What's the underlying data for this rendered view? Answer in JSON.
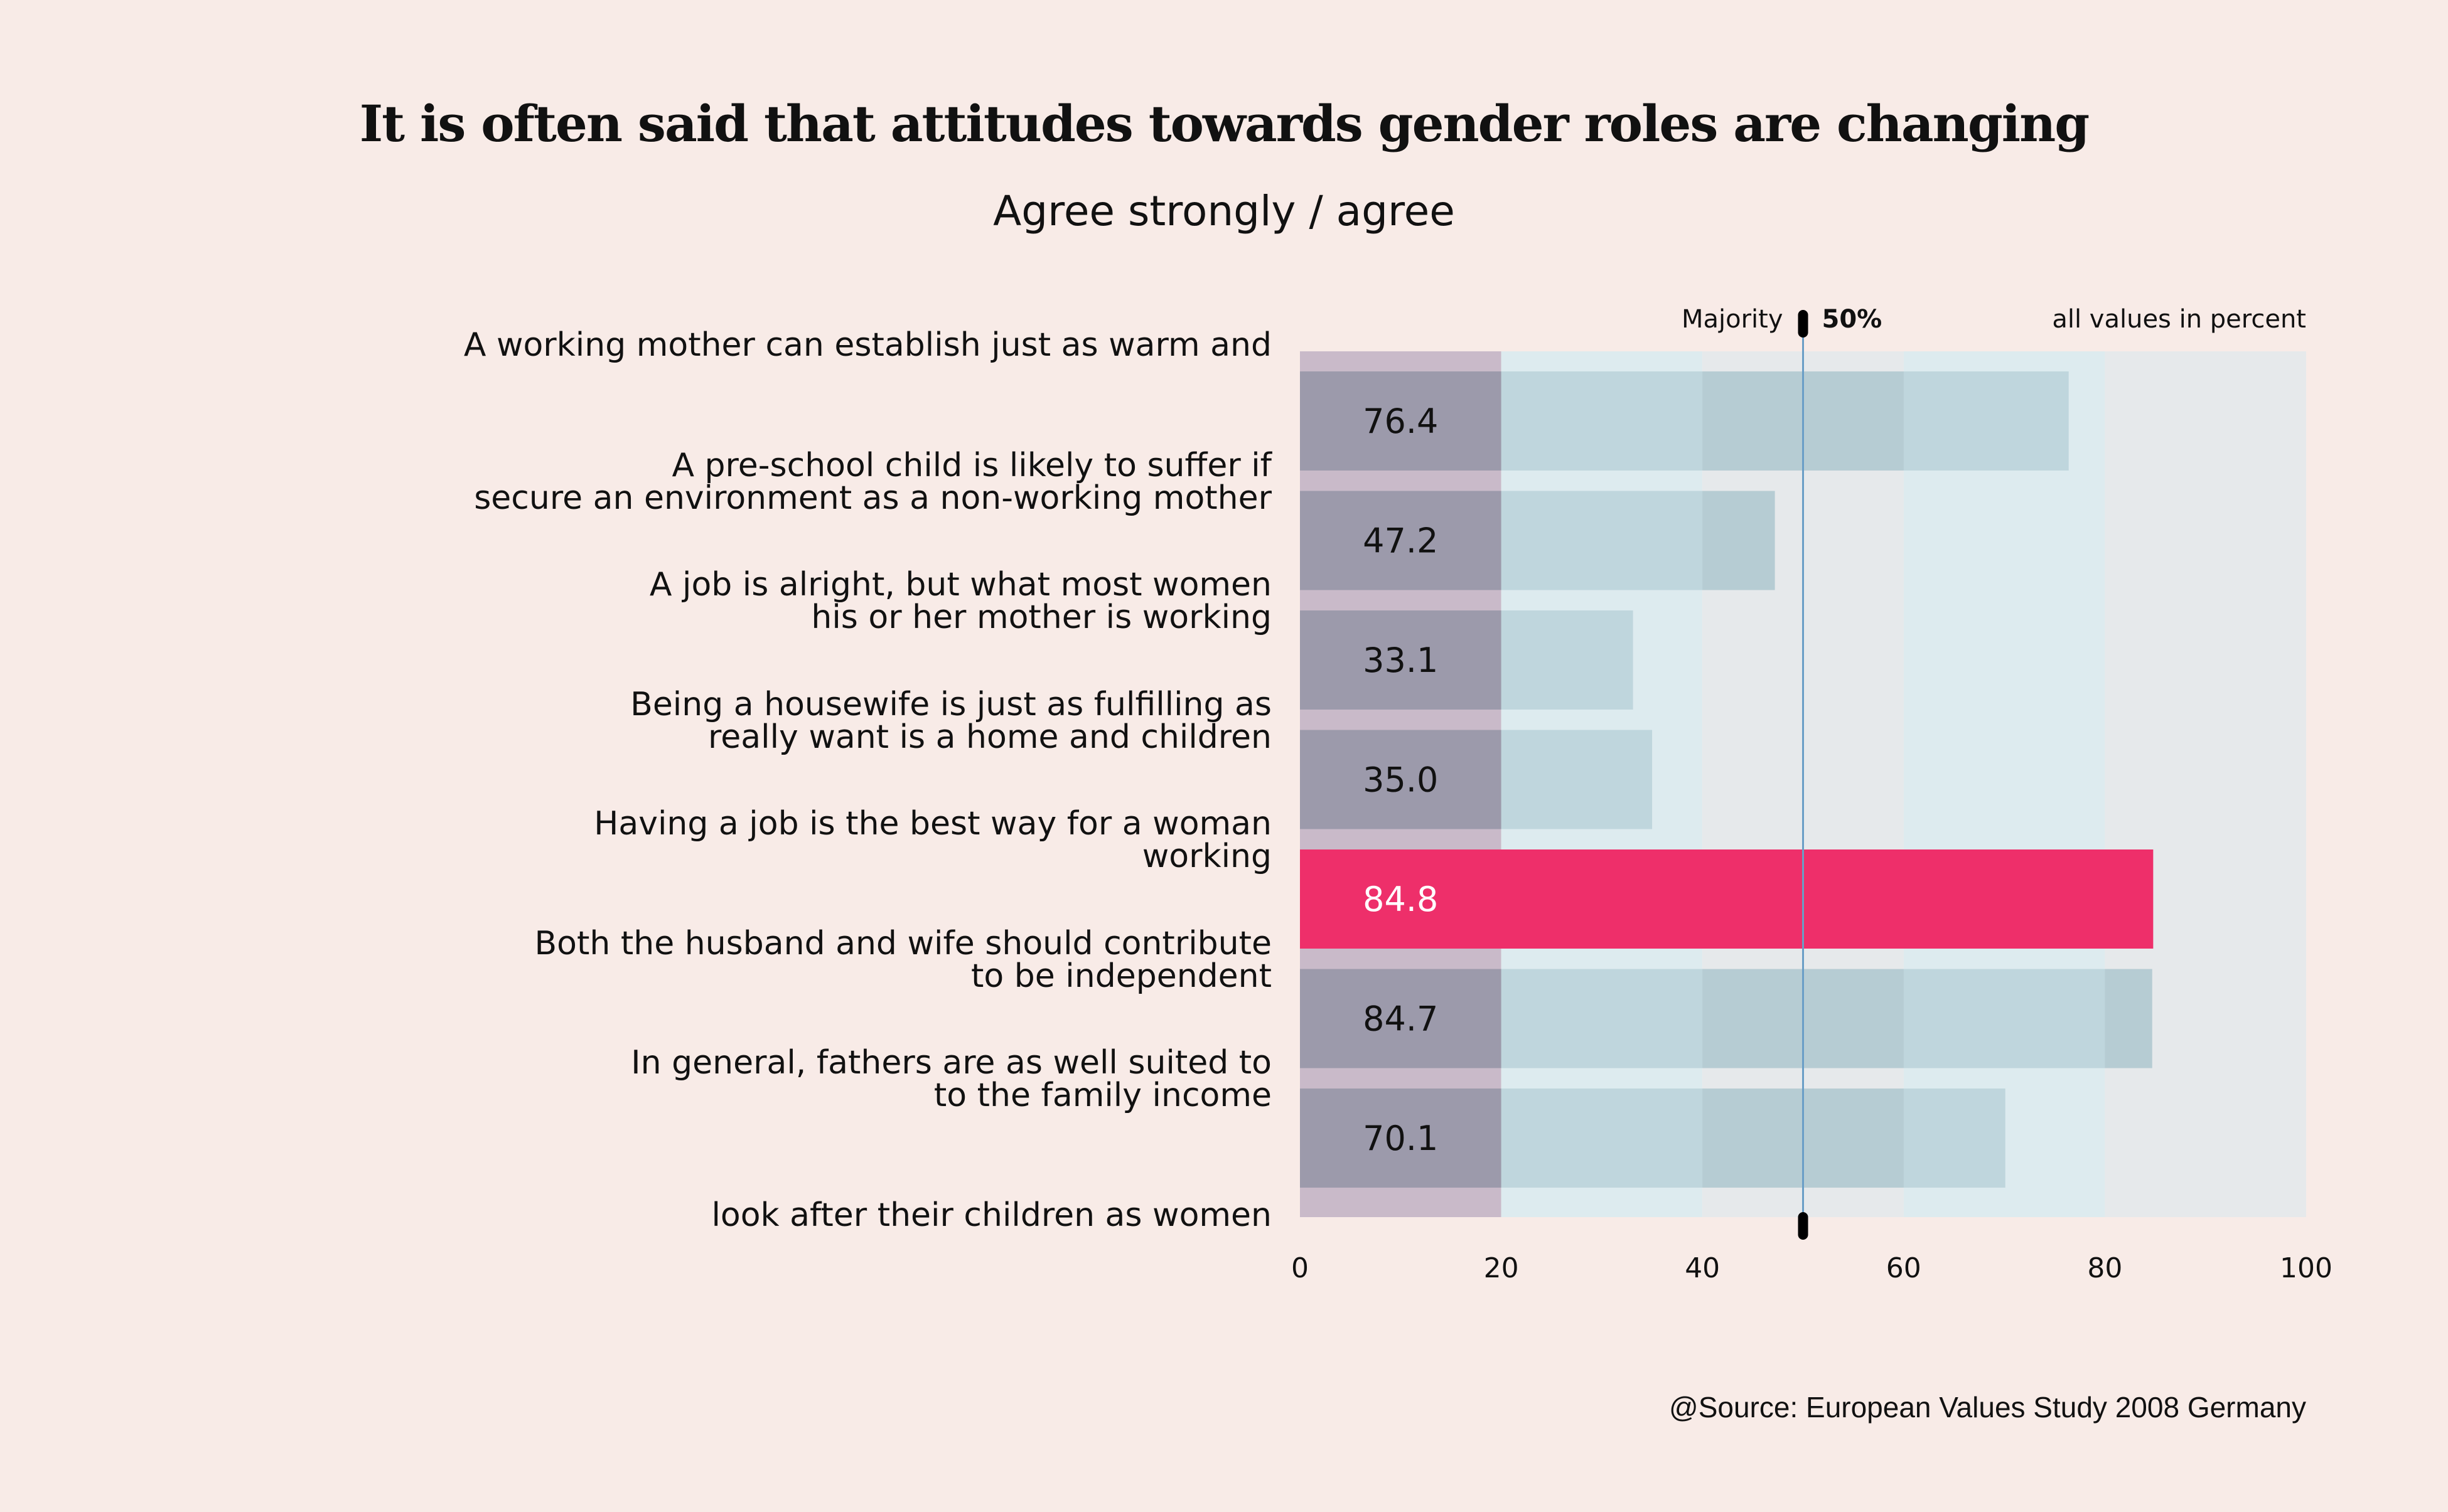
{
  "chart_data": {
    "type": "bar",
    "orientation": "horizontal",
    "title": "It is often said that attitudes towards gender roles are changing",
    "subtitle": "Agree strongly / agree",
    "category_labels": [
      "A working mother can establish just as warm and",
      "A pre-school child is likely to suffer if",
      "secure an environment as a non-working mother",
      "A job is alright, but what most women",
      "his or her mother is working",
      "Being a housewife is just as fulfilling as",
      "really want is a home and children",
      "Having a job is the best way for a woman",
      "working",
      "Both the husband and wife should contribute",
      "to be independent",
      "In general, fathers are as well suited to",
      "to the family income",
      "look after their children as women"
    ],
    "values": [
      76.4,
      47.2,
      33.1,
      35.0,
      84.8,
      84.7,
      70.1
    ],
    "value_labels": [
      "76.4",
      "47.2",
      "33.1",
      "35.0",
      "84.8",
      "84.7",
      "70.1"
    ],
    "highlight_index": 4,
    "xlim": [
      0,
      100
    ],
    "xticks": [
      "0",
      "20",
      "40",
      "60",
      "80",
      "100"
    ],
    "reference_line": {
      "value": 50,
      "label": "Majority",
      "value_label": "50%"
    },
    "note": "all values in percent",
    "source": "@Source: European Values Study 2008 Germany",
    "grid": false,
    "colors": {
      "bar": "#bfd6dd",
      "bar_first_zone": "#9c9aab",
      "highlight": "#ee2f6a",
      "band_0_20": "#c9bac9",
      "band_20_40": "#ddebef",
      "band_40_60": "#e6e9eb",
      "band_60_80": "#ddebef",
      "band_80_100": "#e6e9eb",
      "reference": "#6a9ec6"
    }
  }
}
